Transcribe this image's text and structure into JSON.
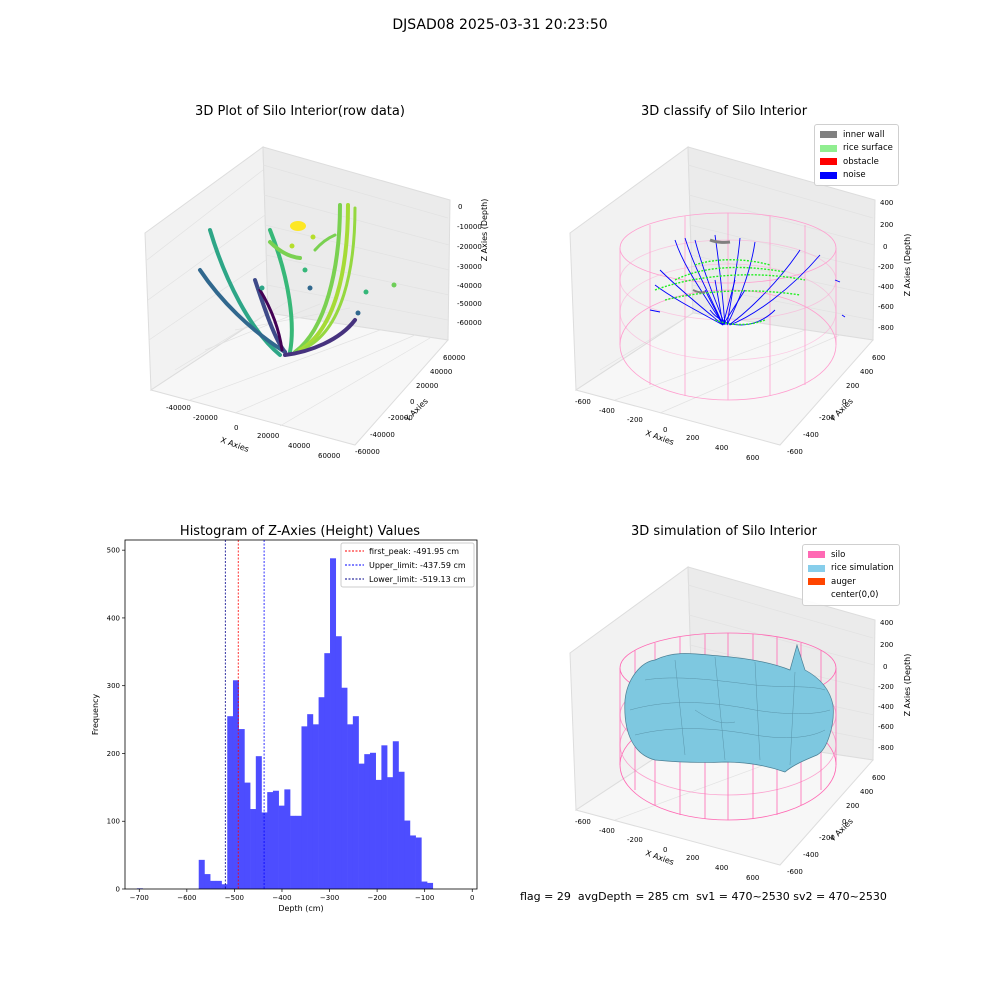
{
  "suptitle": "DJSAD08 2025-03-31 20:23:50",
  "status": {
    "flag": "flag = 29",
    "avg": "avgDepth = 285 cm",
    "sv1": "sv1 = 470~2530",
    "sv2": "sv2 = 470~2530"
  },
  "panels": {
    "raw": {
      "title": "3D Plot of Silo Interior(row data)",
      "xlabel": "X Axies",
      "ylabel": "Y Axies",
      "zlabel": "Z Axies (Depth)",
      "xticks": [
        "-40000",
        "-20000",
        "0",
        "20000",
        "40000",
        "60000"
      ],
      "yticks": [
        "-60000",
        "-40000",
        "-20000",
        "0",
        "20000",
        "40000",
        "60000"
      ],
      "zticks": [
        "0",
        "-10000",
        "-20000",
        "-30000",
        "-40000",
        "-50000",
        "-60000"
      ]
    },
    "classify": {
      "title": "3D classify of Silo Interior",
      "xlabel": "X Axies",
      "ylabel": "Y Axies",
      "zlabel": "Z Axies (Depth)",
      "xticks": [
        "-600",
        "-400",
        "-200",
        "0",
        "200",
        "400",
        "600"
      ],
      "yticks": [
        "-600",
        "-400",
        "-200",
        "0",
        "200",
        "400",
        "600"
      ],
      "zticks": [
        "400",
        "200",
        "0",
        "-200",
        "-400",
        "-600",
        "-800"
      ],
      "legend": [
        {
          "label": "inner wall",
          "color": "#808080"
        },
        {
          "label": "rice surface",
          "color": "#90ee90"
        },
        {
          "label": "obstacle",
          "color": "#ff0000"
        },
        {
          "label": "noise",
          "color": "#0000ff"
        }
      ]
    },
    "simulation": {
      "title": "3D simulation of Silo Interior",
      "xlabel": "X Axies",
      "ylabel": "Y Axies",
      "zlabel": "Z Axies (Depth)",
      "xticks": [
        "-600",
        "-400",
        "-200",
        "0",
        "200",
        "400",
        "600"
      ],
      "yticks": [
        "-600",
        "-400",
        "-200",
        "0",
        "200",
        "400",
        "600"
      ],
      "zticks": [
        "400",
        "200",
        "0",
        "-200",
        "-400",
        "-600",
        "-800"
      ],
      "legend": [
        {
          "label": "silo",
          "color": "#ff69b4"
        },
        {
          "label": "rice simulation",
          "color": "#87ceeb"
        },
        {
          "label": "auger",
          "color": "#ff4500"
        },
        {
          "label": "center(0,0)",
          "color": "#ffffff"
        }
      ]
    }
  },
  "chart_data": [
    {
      "type": "bar",
      "title": "Histogram of Z-Axies (Height) Values",
      "xlabel": "Depth (cm)",
      "ylabel": "Frequency",
      "xlim": [
        -730,
        10
      ],
      "ylim": [
        0,
        515
      ],
      "xticks": [
        -700,
        -600,
        -500,
        -400,
        -300,
        -200,
        -100,
        0
      ],
      "yticks": [
        0,
        100,
        200,
        300,
        400,
        500
      ],
      "color": "#4d4dff",
      "bins": [
        {
          "x0": -705,
          "x1": -693,
          "value": 1
        },
        {
          "x0": -575,
          "x1": -563,
          "value": 43
        },
        {
          "x0": -563,
          "x1": -551,
          "value": 22
        },
        {
          "x0": -551,
          "x1": -539,
          "value": 12
        },
        {
          "x0": -539,
          "x1": -527,
          "value": 12
        },
        {
          "x0": -527,
          "x1": -515,
          "value": 7
        },
        {
          "x0": -515,
          "x1": -503,
          "value": 255
        },
        {
          "x0": -503,
          "x1": -491,
          "value": 308
        },
        {
          "x0": -491,
          "x1": -479,
          "value": 236
        },
        {
          "x0": -479,
          "x1": -467,
          "value": 157
        },
        {
          "x0": -467,
          "x1": -455,
          "value": 118
        },
        {
          "x0": -455,
          "x1": -443,
          "value": 196
        },
        {
          "x0": -443,
          "x1": -431,
          "value": 113
        },
        {
          "x0": -431,
          "x1": -419,
          "value": 143
        },
        {
          "x0": -419,
          "x1": -407,
          "value": 145
        },
        {
          "x0": -407,
          "x1": -395,
          "value": 123
        },
        {
          "x0": -395,
          "x1": -383,
          "value": 147
        },
        {
          "x0": -383,
          "x1": -371,
          "value": 108
        },
        {
          "x0": -371,
          "x1": -359,
          "value": 108
        },
        {
          "x0": -359,
          "x1": -347,
          "value": 240
        },
        {
          "x0": -347,
          "x1": -335,
          "value": 258
        },
        {
          "x0": -335,
          "x1": -323,
          "value": 243
        },
        {
          "x0": -323,
          "x1": -311,
          "value": 283
        },
        {
          "x0": -311,
          "x1": -299,
          "value": 348
        },
        {
          "x0": -299,
          "x1": -287,
          "value": 488
        },
        {
          "x0": -287,
          "x1": -275,
          "value": 373
        },
        {
          "x0": -275,
          "x1": -263,
          "value": 297
        },
        {
          "x0": -263,
          "x1": -251,
          "value": 243
        },
        {
          "x0": -251,
          "x1": -239,
          "value": 255
        },
        {
          "x0": -239,
          "x1": -227,
          "value": 185
        },
        {
          "x0": -227,
          "x1": -215,
          "value": 199
        },
        {
          "x0": -215,
          "x1": -203,
          "value": 201
        },
        {
          "x0": -203,
          "x1": -191,
          "value": 161
        },
        {
          "x0": -191,
          "x1": -179,
          "value": 212
        },
        {
          "x0": -179,
          "x1": -167,
          "value": 165
        },
        {
          "x0": -167,
          "x1": -155,
          "value": 218
        },
        {
          "x0": -155,
          "x1": -143,
          "value": 173
        },
        {
          "x0": -143,
          "x1": -131,
          "value": 101
        },
        {
          "x0": -131,
          "x1": -119,
          "value": 79
        },
        {
          "x0": -119,
          "x1": -107,
          "value": 76
        },
        {
          "x0": -107,
          "x1": -95,
          "value": 11
        },
        {
          "x0": -95,
          "x1": -83,
          "value": 9
        }
      ],
      "vlines": [
        {
          "label": "first_peak: -491.95 cm",
          "x": -491.95,
          "color": "#ff0000"
        },
        {
          "label": "Upper_limit: -437.59 cm",
          "x": -437.59,
          "color": "#0000ff"
        },
        {
          "label": "Lower_limit: -519.13 cm",
          "x": -519.13,
          "color": "#00008b"
        }
      ],
      "legend_position": "top-right"
    }
  ]
}
